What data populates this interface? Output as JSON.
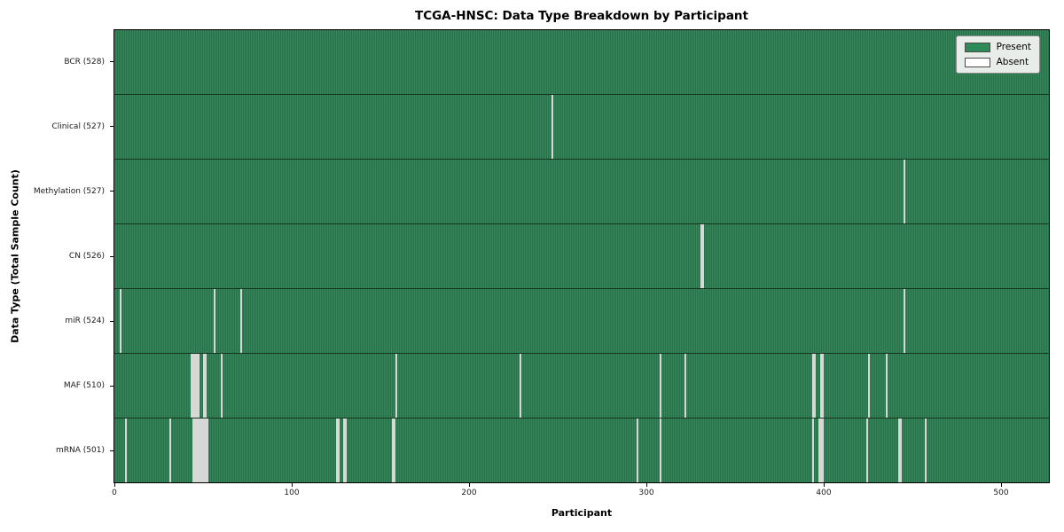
{
  "chart_data": {
    "type": "heatmap",
    "title": "TCGA-HNSC: Data Type Breakdown by Participant",
    "xlabel": "Participant",
    "ylabel": "Data Type (Total Sample Count)",
    "n_participants": 528,
    "x_ticks": [
      0,
      100,
      200,
      300,
      400,
      500
    ],
    "grid": false,
    "legend_position": "upper right",
    "legend": [
      {
        "label": "Present",
        "color": "#2e8b57"
      },
      {
        "label": "Absent",
        "color": "#ffffff"
      }
    ],
    "rows": [
      {
        "data_type": "BCR",
        "label": "BCR (528)",
        "present_count": 528,
        "absent_participants": []
      },
      {
        "data_type": "Clinical",
        "label": "Clinical (527)",
        "present_count": 527,
        "absent_participants": [
          247
        ]
      },
      {
        "data_type": "Methylation",
        "label": "Methylation (527)",
        "present_count": 527,
        "absent_participants": [
          446
        ]
      },
      {
        "data_type": "CN",
        "label": "CN (526)",
        "present_count": 526,
        "absent_participants": [
          331,
          332
        ]
      },
      {
        "data_type": "miR",
        "label": "miR (524)",
        "present_count": 524,
        "absent_participants": [
          3,
          56,
          71,
          446
        ]
      },
      {
        "data_type": "MAF",
        "label": "MAF (510)",
        "present_count": 510,
        "absent_participants": [
          43,
          44,
          45,
          46,
          47,
          50,
          51,
          60,
          159,
          229,
          308,
          322,
          394,
          395,
          399,
          400,
          426,
          436
        ]
      },
      {
        "data_type": "mRNA",
        "label": "mRNA (501)",
        "present_count": 501,
        "absent_participants": [
          6,
          31,
          44,
          45,
          46,
          47,
          48,
          49,
          50,
          51,
          52,
          125,
          126,
          129,
          130,
          157,
          158,
          295,
          308,
          394,
          398,
          399,
          400,
          425,
          443,
          444,
          458
        ]
      }
    ]
  }
}
